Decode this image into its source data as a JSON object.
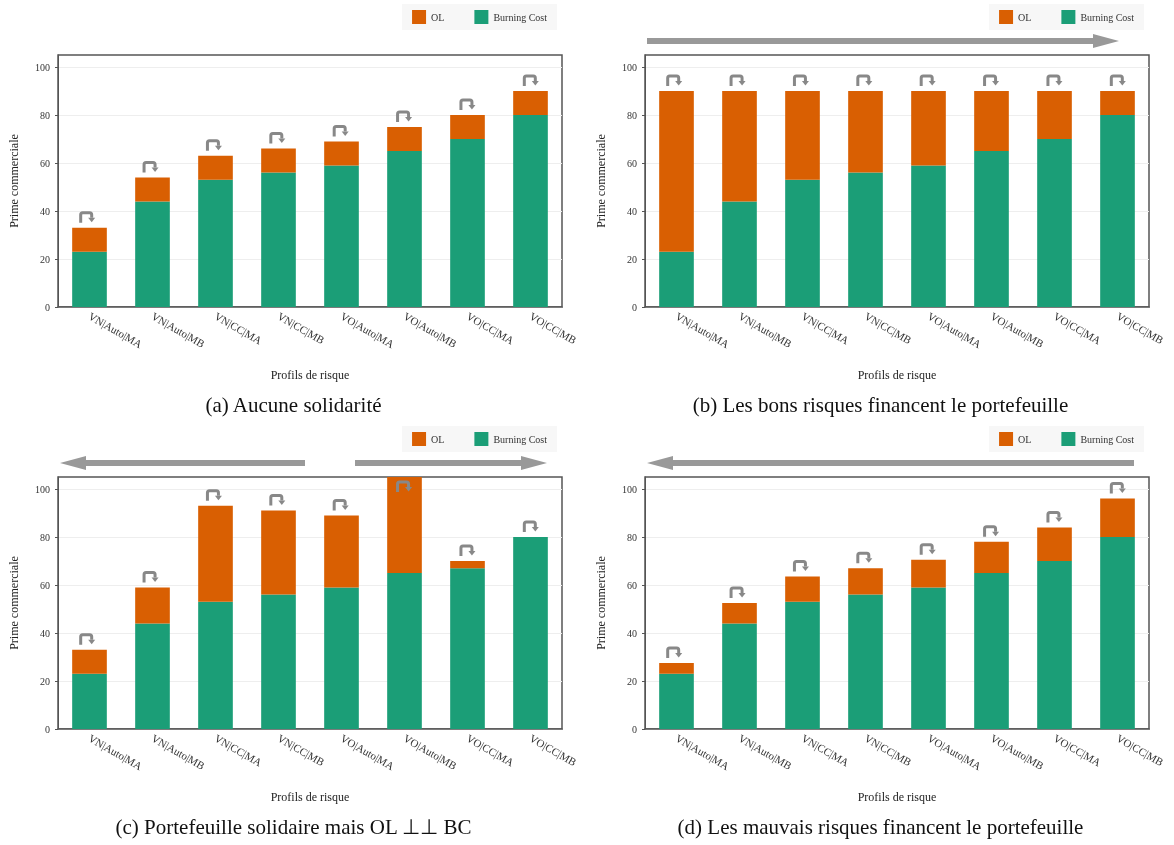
{
  "chart_data": [
    {
      "type": "bar",
      "title": "(a) Aucune solidarité",
      "xlabel": "Profils de risque",
      "ylabel": "Prime commerciale",
      "categories": [
        "VN|Auto|MA",
        "VN|Auto|MB",
        "VN|CC|MA",
        "VN|CC|MB",
        "VO|Auto|MA",
        "VO|Auto|MB",
        "VO|CC|MA",
        "VO|CC|MB"
      ],
      "stacked": true,
      "ylim": [
        0,
        105
      ],
      "yticks": [
        0,
        20,
        40,
        60,
        80,
        100
      ],
      "grid": "y",
      "legend": "top right",
      "series": [
        {
          "name": "Burning Cost",
          "color": "#1b9e77",
          "values": [
            23,
            44,
            53,
            56,
            59,
            65,
            70,
            80
          ]
        },
        {
          "name": "OL",
          "color": "#d95f02",
          "values": [
            10,
            10,
            10,
            10,
            10,
            10,
            10,
            10
          ]
        }
      ]
    },
    {
      "type": "bar",
      "title": "(b) Les bons risques financent le portefeuille",
      "xlabel": "Profils de risque",
      "ylabel": "Prime commerciale",
      "categories": [
        "VN|Auto|MA",
        "VN|Auto|MB",
        "VN|CC|MA",
        "VN|CC|MB",
        "VO|Auto|MA",
        "VO|Auto|MB",
        "VO|CC|MA",
        "VO|CC|MB"
      ],
      "stacked": true,
      "ylim": [
        0,
        105
      ],
      "yticks": [
        0,
        20,
        40,
        60,
        80,
        100
      ],
      "grid": "y",
      "legend": "top right",
      "series": [
        {
          "name": "Burning Cost",
          "color": "#1b9e77",
          "values": [
            23,
            44,
            53,
            56,
            59,
            65,
            70,
            80
          ]
        },
        {
          "name": "OL",
          "color": "#d95f02",
          "values": [
            67,
            46,
            37,
            34,
            31,
            25,
            20,
            10
          ]
        }
      ]
    },
    {
      "type": "bar",
      "title": "(c) Portefeuille solidaire mais OL ⊥⊥ BC",
      "xlabel": "Profils de risque",
      "ylabel": "Prime commerciale",
      "categories": [
        "VN|Auto|MA",
        "VN|Auto|MB",
        "VN|CC|MA",
        "VN|CC|MB",
        "VO|Auto|MA",
        "VO|Auto|MB",
        "VO|CC|MA",
        "VO|CC|MB"
      ],
      "stacked": true,
      "ylim": [
        0,
        105
      ],
      "yticks": [
        0,
        20,
        40,
        60,
        80,
        100
      ],
      "grid": "y",
      "legend": "top right",
      "series": [
        {
          "name": "Burning Cost",
          "color": "#1b9e77",
          "values": [
            23,
            44,
            53,
            56,
            59,
            65,
            67,
            80
          ]
        },
        {
          "name": "OL",
          "color": "#d95f02",
          "values": [
            10,
            15,
            40,
            35,
            30,
            40,
            3,
            0
          ]
        }
      ]
    },
    {
      "type": "bar",
      "title": "(d) Les mauvais risques financent le portefeuille",
      "xlabel": "Profils de risque",
      "ylabel": "Prime commerciale",
      "categories": [
        "VN|Auto|MA",
        "VN|Auto|MB",
        "VN|CC|MA",
        "VN|CC|MB",
        "VO|Auto|MA",
        "VO|Auto|MB",
        "VO|CC|MA",
        "VO|CC|MB"
      ],
      "stacked": true,
      "ylim": [
        0,
        105
      ],
      "yticks": [
        0,
        20,
        40,
        60,
        80,
        100
      ],
      "grid": "y",
      "legend": "top right",
      "series": [
        {
          "name": "Burning Cost",
          "color": "#1b9e77",
          "values": [
            23,
            44,
            53,
            56,
            59,
            65,
            70,
            80
          ]
        },
        {
          "name": "OL",
          "color": "#d95f02",
          "values": [
            4.5,
            8.5,
            10.5,
            11,
            11.5,
            13,
            14,
            16
          ]
        }
      ]
    }
  ]
}
